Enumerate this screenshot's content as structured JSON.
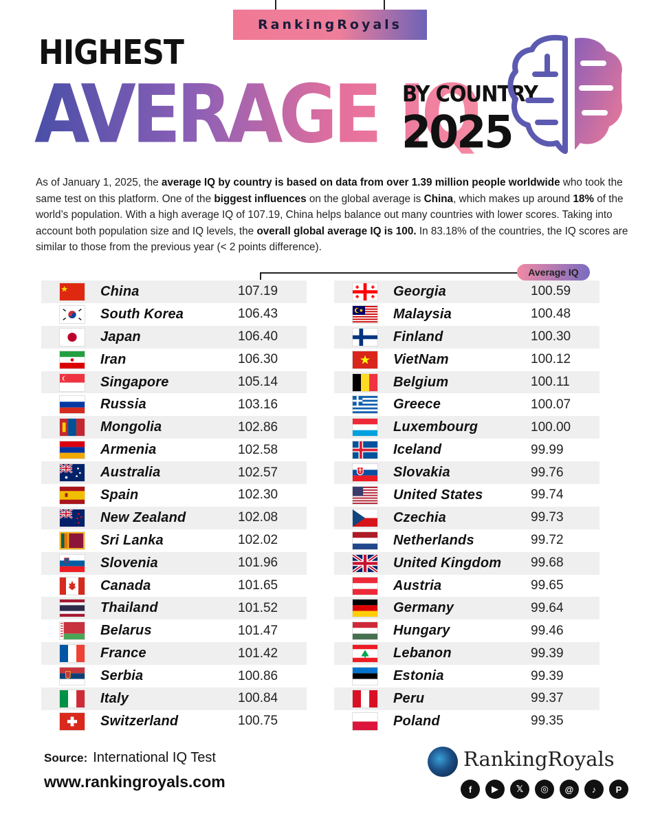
{
  "brand": {
    "name": "RankingRoyals"
  },
  "title": {
    "line1": "HIGHEST",
    "main": "AVERAGE IQ",
    "by": "BY COUNTRY",
    "year": "2025"
  },
  "intro": {
    "t1": "As of January 1, 2025, the ",
    "b1": "average IQ by country is based on data from over 1.39 million people worldwide",
    "t2": " who took the same test on this platform. One of the ",
    "b2": "biggest influences",
    "t3": " on the global average is ",
    "b3": "China",
    "t4": ", which makes up around ",
    "b4": "18%",
    "t5": " of the world’s population. With a high average IQ of 107.19, China helps balance out many countries with lower scores. Taking into account both population size and IQ levels, the ",
    "b5": "overall global average IQ is 100.",
    "t6": " In 83.18% of the countries, the IQ scores are similar to those from the previous year (< 2 points difference)."
  },
  "table": {
    "badge": "Average IQ",
    "left": [
      {
        "country": "China",
        "iq": "107.19",
        "flag": "china-flag-icon"
      },
      {
        "country": "South Korea",
        "iq": "106.43",
        "flag": "south-korea-flag-icon"
      },
      {
        "country": "Japan",
        "iq": "106.40",
        "flag": "japan-flag-icon"
      },
      {
        "country": "Iran",
        "iq": "106.30",
        "flag": "iran-flag-icon"
      },
      {
        "country": "Singapore",
        "iq": "105.14",
        "flag": "singapore-flag-icon"
      },
      {
        "country": "Russia",
        "iq": "103.16",
        "flag": "russia-flag-icon"
      },
      {
        "country": "Mongolia",
        "iq": "102.86",
        "flag": "mongolia-flag-icon"
      },
      {
        "country": "Armenia",
        "iq": "102.58",
        "flag": "armenia-flag-icon"
      },
      {
        "country": "Australia",
        "iq": "102.57",
        "flag": "australia-flag-icon"
      },
      {
        "country": "Spain",
        "iq": "102.30",
        "flag": "spain-flag-icon"
      },
      {
        "country": "New Zealand",
        "iq": "102.08",
        "flag": "new-zealand-flag-icon"
      },
      {
        "country": "Sri Lanka",
        "iq": "102.02",
        "flag": "sri-lanka-flag-icon"
      },
      {
        "country": "Slovenia",
        "iq": "101.96",
        "flag": "slovenia-flag-icon"
      },
      {
        "country": "Canada",
        "iq": "101.65",
        "flag": "canada-flag-icon"
      },
      {
        "country": "Thailand",
        "iq": "101.52",
        "flag": "thailand-flag-icon"
      },
      {
        "country": "Belarus",
        "iq": "101.47",
        "flag": "belarus-flag-icon"
      },
      {
        "country": "France",
        "iq": "101.42",
        "flag": "france-flag-icon"
      },
      {
        "country": "Serbia",
        "iq": "100.86",
        "flag": "serbia-flag-icon"
      },
      {
        "country": "Italy",
        "iq": "100.84",
        "flag": "italy-flag-icon"
      },
      {
        "country": "Switzerland",
        "iq": "100.75",
        "flag": "switzerland-flag-icon"
      }
    ],
    "right": [
      {
        "country": "Georgia",
        "iq": "100.59",
        "flag": "georgia-flag-icon"
      },
      {
        "country": "Malaysia",
        "iq": "100.48",
        "flag": "malaysia-flag-icon"
      },
      {
        "country": "Finland",
        "iq": "100.30",
        "flag": "finland-flag-icon"
      },
      {
        "country": "VietNam",
        "iq": "100.12",
        "flag": "vietnam-flag-icon"
      },
      {
        "country": "Belgium",
        "iq": "100.11",
        "flag": "belgium-flag-icon"
      },
      {
        "country": "Greece",
        "iq": "100.07",
        "flag": "greece-flag-icon"
      },
      {
        "country": "Luxembourg",
        "iq": "100.00",
        "flag": "luxembourg-flag-icon"
      },
      {
        "country": "Iceland",
        "iq": "99.99",
        "flag": "iceland-flag-icon"
      },
      {
        "country": "Slovakia",
        "iq": "99.76",
        "flag": "slovakia-flag-icon"
      },
      {
        "country": "United States",
        "iq": "99.74",
        "flag": "united-states-flag-icon"
      },
      {
        "country": "Czechia",
        "iq": "99.73",
        "flag": "czechia-flag-icon"
      },
      {
        "country": "Netherlands",
        "iq": "99.72",
        "flag": "netherlands-flag-icon"
      },
      {
        "country": "United Kingdom",
        "iq": "99.68",
        "flag": "united-kingdom-flag-icon"
      },
      {
        "country": "Austria",
        "iq": "99.65",
        "flag": "austria-flag-icon"
      },
      {
        "country": "Germany",
        "iq": "99.64",
        "flag": "germany-flag-icon"
      },
      {
        "country": "Hungary",
        "iq": "99.46",
        "flag": "hungary-flag-icon"
      },
      {
        "country": "Lebanon",
        "iq": "99.39",
        "flag": "lebanon-flag-icon"
      },
      {
        "country": "Estonia",
        "iq": "99.39",
        "flag": "estonia-flag-icon"
      },
      {
        "country": "Peru",
        "iq": "99.37",
        "flag": "peru-flag-icon"
      },
      {
        "country": "Poland",
        "iq": "99.35",
        "flag": "poland-flag-icon"
      }
    ]
  },
  "footer": {
    "source_label": "Source:",
    "source_value": "International IQ Test",
    "website": "www.rankingroyals.com",
    "logo_text": "RankingRoyals",
    "socials": [
      "facebook-icon",
      "youtube-icon",
      "x-icon",
      "instagram-icon",
      "threads-icon",
      "tiktok-icon",
      "pinterest-icon"
    ]
  },
  "colors": {
    "accent_pink": "#f07a96",
    "accent_purple": "#6d63b8",
    "row_shade": "#efefef"
  }
}
